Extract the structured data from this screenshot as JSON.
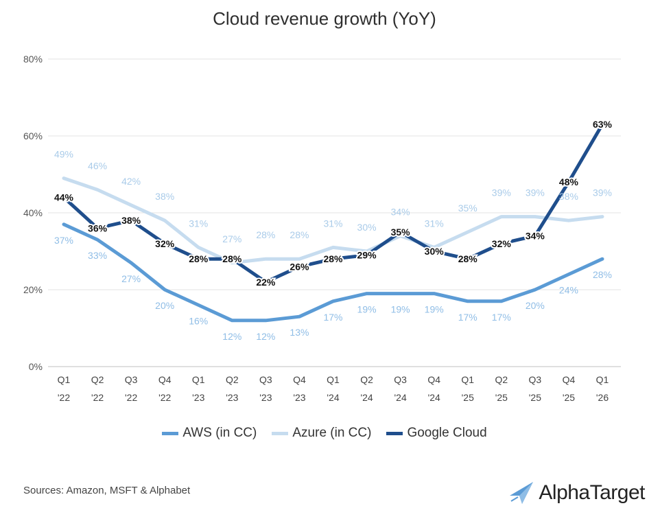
{
  "chart_data": {
    "type": "line",
    "title": "Cloud revenue growth (YoY)",
    "xlabel": "",
    "ylabel": "",
    "ylim": [
      0,
      80
    ],
    "yticks": [
      "0%",
      "20%",
      "40%",
      "60%",
      "80%"
    ],
    "grid": true,
    "legend_position": "bottom",
    "categories": [
      [
        "Q1",
        "'22"
      ],
      [
        "Q2",
        "'22"
      ],
      [
        "Q3",
        "'22"
      ],
      [
        "Q4",
        "'22"
      ],
      [
        "Q1",
        "'23"
      ],
      [
        "Q2",
        "'23"
      ],
      [
        "Q3",
        "'23"
      ],
      [
        "Q4",
        "'23"
      ],
      [
        "Q1",
        "'24"
      ],
      [
        "Q2",
        "'24"
      ],
      [
        "Q3",
        "'24"
      ],
      [
        "Q4",
        "'24"
      ],
      [
        "Q1",
        "'25"
      ],
      [
        "Q2",
        "'25"
      ],
      [
        "Q3",
        "'25"
      ],
      [
        "Q4",
        "'25"
      ],
      [
        "Q1",
        "'26"
      ]
    ],
    "series": [
      {
        "name": "AWS (in CC)",
        "color": "#5b9bd5",
        "values": [
          37,
          33,
          27,
          20,
          16,
          12,
          12,
          13,
          17,
          19,
          19,
          19,
          17,
          17,
          20,
          24,
          28
        ]
      },
      {
        "name": "Azure (in CC)",
        "color": "#c6dcef",
        "values": [
          49,
          46,
          42,
          38,
          31,
          27,
          28,
          28,
          31,
          30,
          34,
          31,
          35,
          39,
          39,
          38,
          39
        ]
      },
      {
        "name": "Google Cloud",
        "color": "#1f4e8c",
        "values": [
          44,
          36,
          38,
          32,
          28,
          28,
          22,
          26,
          28,
          29,
          35,
          30,
          28,
          32,
          34,
          48,
          63
        ]
      }
    ]
  },
  "source": "Sources: Amazon, MSFT & Alphabet",
  "brand": "AlphaTarget",
  "brand_color": "#5b9bd5"
}
